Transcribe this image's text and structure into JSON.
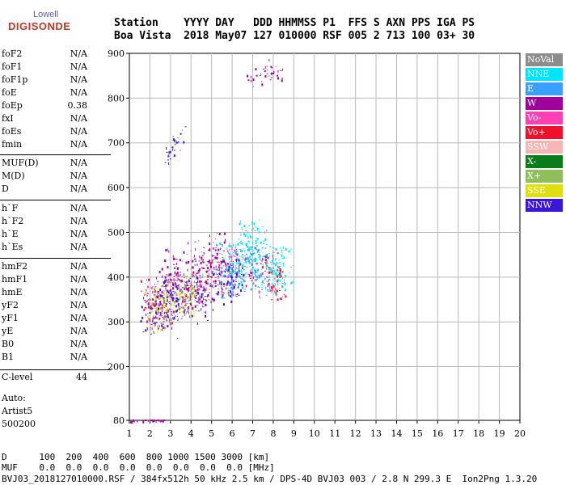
{
  "logo": {
    "top": "Lowell",
    "bottom": "DIGISONDE"
  },
  "header": {
    "row1": "Station    YYYY DAY   DDD HHMMSS P1  FFS S AXN PPS IGA PS",
    "row2": "Boa Vista  2018 May07 127 010000 RSF 005 2 713 100 03+ 30"
  },
  "params": [
    {
      "name": "foF2",
      "value": "N/A"
    },
    {
      "name": "foF1",
      "value": "N/A"
    },
    {
      "name": "foF1p",
      "value": "N/A"
    },
    {
      "name": "foE",
      "value": "N/A"
    },
    {
      "name": "foEp",
      "value": "0.38"
    },
    {
      "name": "fxI",
      "value": "N/A"
    },
    {
      "name": "foEs",
      "value": "N/A"
    },
    {
      "name": "fmin",
      "value": "N/A"
    },
    {
      "name": "MUF(D)",
      "value": "N/A"
    },
    {
      "name": "M(D)",
      "value": "N/A"
    },
    {
      "name": "D",
      "value": "N/A"
    },
    {
      "name": "h`F",
      "value": "N/A"
    },
    {
      "name": "h`F2",
      "value": "N/A"
    },
    {
      "name": "h`E",
      "value": "N/A"
    },
    {
      "name": "h`Es",
      "value": "N/A"
    },
    {
      "name": "hmF2",
      "value": "N/A"
    },
    {
      "name": "hmF1",
      "value": "N/A"
    },
    {
      "name": "hmE",
      "value": "N/A"
    },
    {
      "name": "yF2",
      "value": "N/A"
    },
    {
      "name": "yF1",
      "value": "N/A"
    },
    {
      "name": "yE",
      "value": "N/A"
    },
    {
      "name": "B0",
      "value": "N/A"
    },
    {
      "name": "B1",
      "value": "N/A"
    },
    {
      "name": "C-level",
      "value": "44"
    }
  ],
  "auto": {
    "line1": "Auto:",
    "line2": "Artist5",
    "line3": "500200"
  },
  "legend": [
    {
      "label": "NoVal",
      "color": "#8c8c8c"
    },
    {
      "label": "NNE",
      "color": "#00e5ff"
    },
    {
      "label": "E",
      "color": "#3aa0ff"
    },
    {
      "label": "W",
      "color": "#a0009c"
    },
    {
      "label": "Vo-",
      "color": "#ff3fb4"
    },
    {
      "label": "Vo+",
      "color": "#f0102e"
    },
    {
      "label": "SSW",
      "color": "#f7b5b5"
    },
    {
      "label": "X-",
      "color": "#0a7d1a"
    },
    {
      "label": "X+",
      "color": "#8fbf5a"
    },
    {
      "label": "SSE",
      "color": "#dede10"
    },
    {
      "label": "NNW",
      "color": "#3a16d8"
    }
  ],
  "footer": {
    "d_row": "D      100  200  400  600  800 1000 1500 3000 [km]",
    "muf_row": "MUF    0.0  0.0  0.0  0.0  0.0  0.0  0.0  0.0 [MHz]",
    "file_row": "BVJ03_2018127010000.RSF / 384fx512h 50 kHz 2.5 km / DPS-4D BVJ03 003 / 2.8 N 299.3 E  Ion2Png 1.3.20"
  },
  "chart_data": {
    "type": "scatter",
    "xlim": [
      1,
      20
    ],
    "ylim": [
      80,
      900
    ],
    "xticks": [
      1,
      2,
      3,
      4,
      5,
      6,
      7,
      8,
      9,
      10,
      11,
      12,
      13,
      14,
      15,
      16,
      17,
      18,
      19,
      20
    ],
    "yticks": [
      80,
      200,
      300,
      400,
      500,
      600,
      700,
      800,
      900
    ],
    "grid": true,
    "xlabel": "",
    "ylabel": "",
    "clusters": [
      {
        "series": "W",
        "points": [
          [
            2.1,
            330
          ],
          [
            2.5,
            345
          ],
          [
            3.0,
            360
          ],
          [
            3.5,
            370
          ],
          [
            4.0,
            380
          ],
          [
            4.5,
            390
          ],
          [
            5.0,
            400
          ],
          [
            5.5,
            410
          ],
          [
            6.0,
            400
          ],
          [
            6.5,
            420
          ],
          [
            3.2,
            420
          ],
          [
            4.2,
            440
          ],
          [
            5.2,
            460
          ],
          [
            5.8,
            430
          ],
          [
            3.0,
            395
          ],
          [
            4.6,
            420
          ],
          [
            2.6,
            380
          ],
          [
            7.2,
            430
          ]
        ]
      },
      {
        "series": "NNE",
        "points": [
          [
            6.0,
            430
          ],
          [
            6.5,
            450
          ],
          [
            7.0,
            460
          ],
          [
            7.5,
            440
          ],
          [
            8.0,
            430
          ],
          [
            8.3,
            420
          ],
          [
            6.8,
            480
          ],
          [
            7.2,
            470
          ],
          [
            5.6,
            440
          ],
          [
            6.2,
            410
          ],
          [
            7.8,
            400
          ],
          [
            8.5,
            430
          ],
          [
            6.9,
            490
          ]
        ]
      },
      {
        "series": "E",
        "points": [
          [
            6.2,
            420
          ],
          [
            6.8,
            440
          ],
          [
            7.4,
            430
          ],
          [
            8.0,
            420
          ],
          [
            5.8,
            400
          ],
          [
            7.0,
            410
          ]
        ]
      },
      {
        "series": "NNW",
        "points": [
          [
            2.0,
            320
          ],
          [
            2.4,
            330
          ],
          [
            2.8,
            340
          ],
          [
            3.4,
            350
          ],
          [
            4.0,
            360
          ],
          [
            4.6,
            370
          ],
          [
            5.2,
            380
          ],
          [
            5.8,
            390
          ],
          [
            6.2,
            400
          ],
          [
            3.1,
            360
          ],
          [
            4.3,
            345
          ],
          [
            2.9,
            310
          ]
        ]
      },
      {
        "series": "Vo-",
        "points": [
          [
            2.2,
            340
          ],
          [
            3.3,
            360
          ],
          [
            4.4,
            380
          ],
          [
            5.5,
            420
          ],
          [
            7.7,
            400
          ]
        ]
      },
      {
        "series": "Vo+",
        "points": [
          [
            2.0,
            350
          ],
          [
            2.6,
            330
          ],
          [
            3.6,
            355
          ],
          [
            5.1,
            390
          ],
          [
            7.9,
            410
          ],
          [
            8.2,
            390
          ]
        ]
      },
      {
        "series": "X+",
        "points": [
          [
            2.3,
            325
          ],
          [
            3.2,
            345
          ],
          [
            4.1,
            365
          ]
        ]
      },
      {
        "series": "SSE",
        "points": [
          [
            2.2,
            330
          ],
          [
            2.7,
            350
          ],
          [
            3.7,
            360
          ]
        ]
      },
      {
        "series": "W",
        "points": [
          [
            6.8,
            840
          ],
          [
            7.2,
            850
          ],
          [
            7.6,
            860
          ],
          [
            8.0,
            855
          ],
          [
            8.2,
            850
          ],
          [
            7.9,
            870
          ]
        ]
      },
      {
        "series": "NNW",
        "points": [
          [
            2.9,
            670
          ],
          [
            3.1,
            690
          ],
          [
            3.3,
            700
          ],
          [
            3.0,
            680
          ],
          [
            3.5,
            720
          ]
        ]
      },
      {
        "series": "W",
        "points": [
          [
            1.8,
            80
          ],
          [
            2.1,
            80
          ],
          [
            2.4,
            80
          ],
          [
            2.7,
            80
          ],
          [
            1.2,
            80
          ]
        ]
      }
    ]
  }
}
